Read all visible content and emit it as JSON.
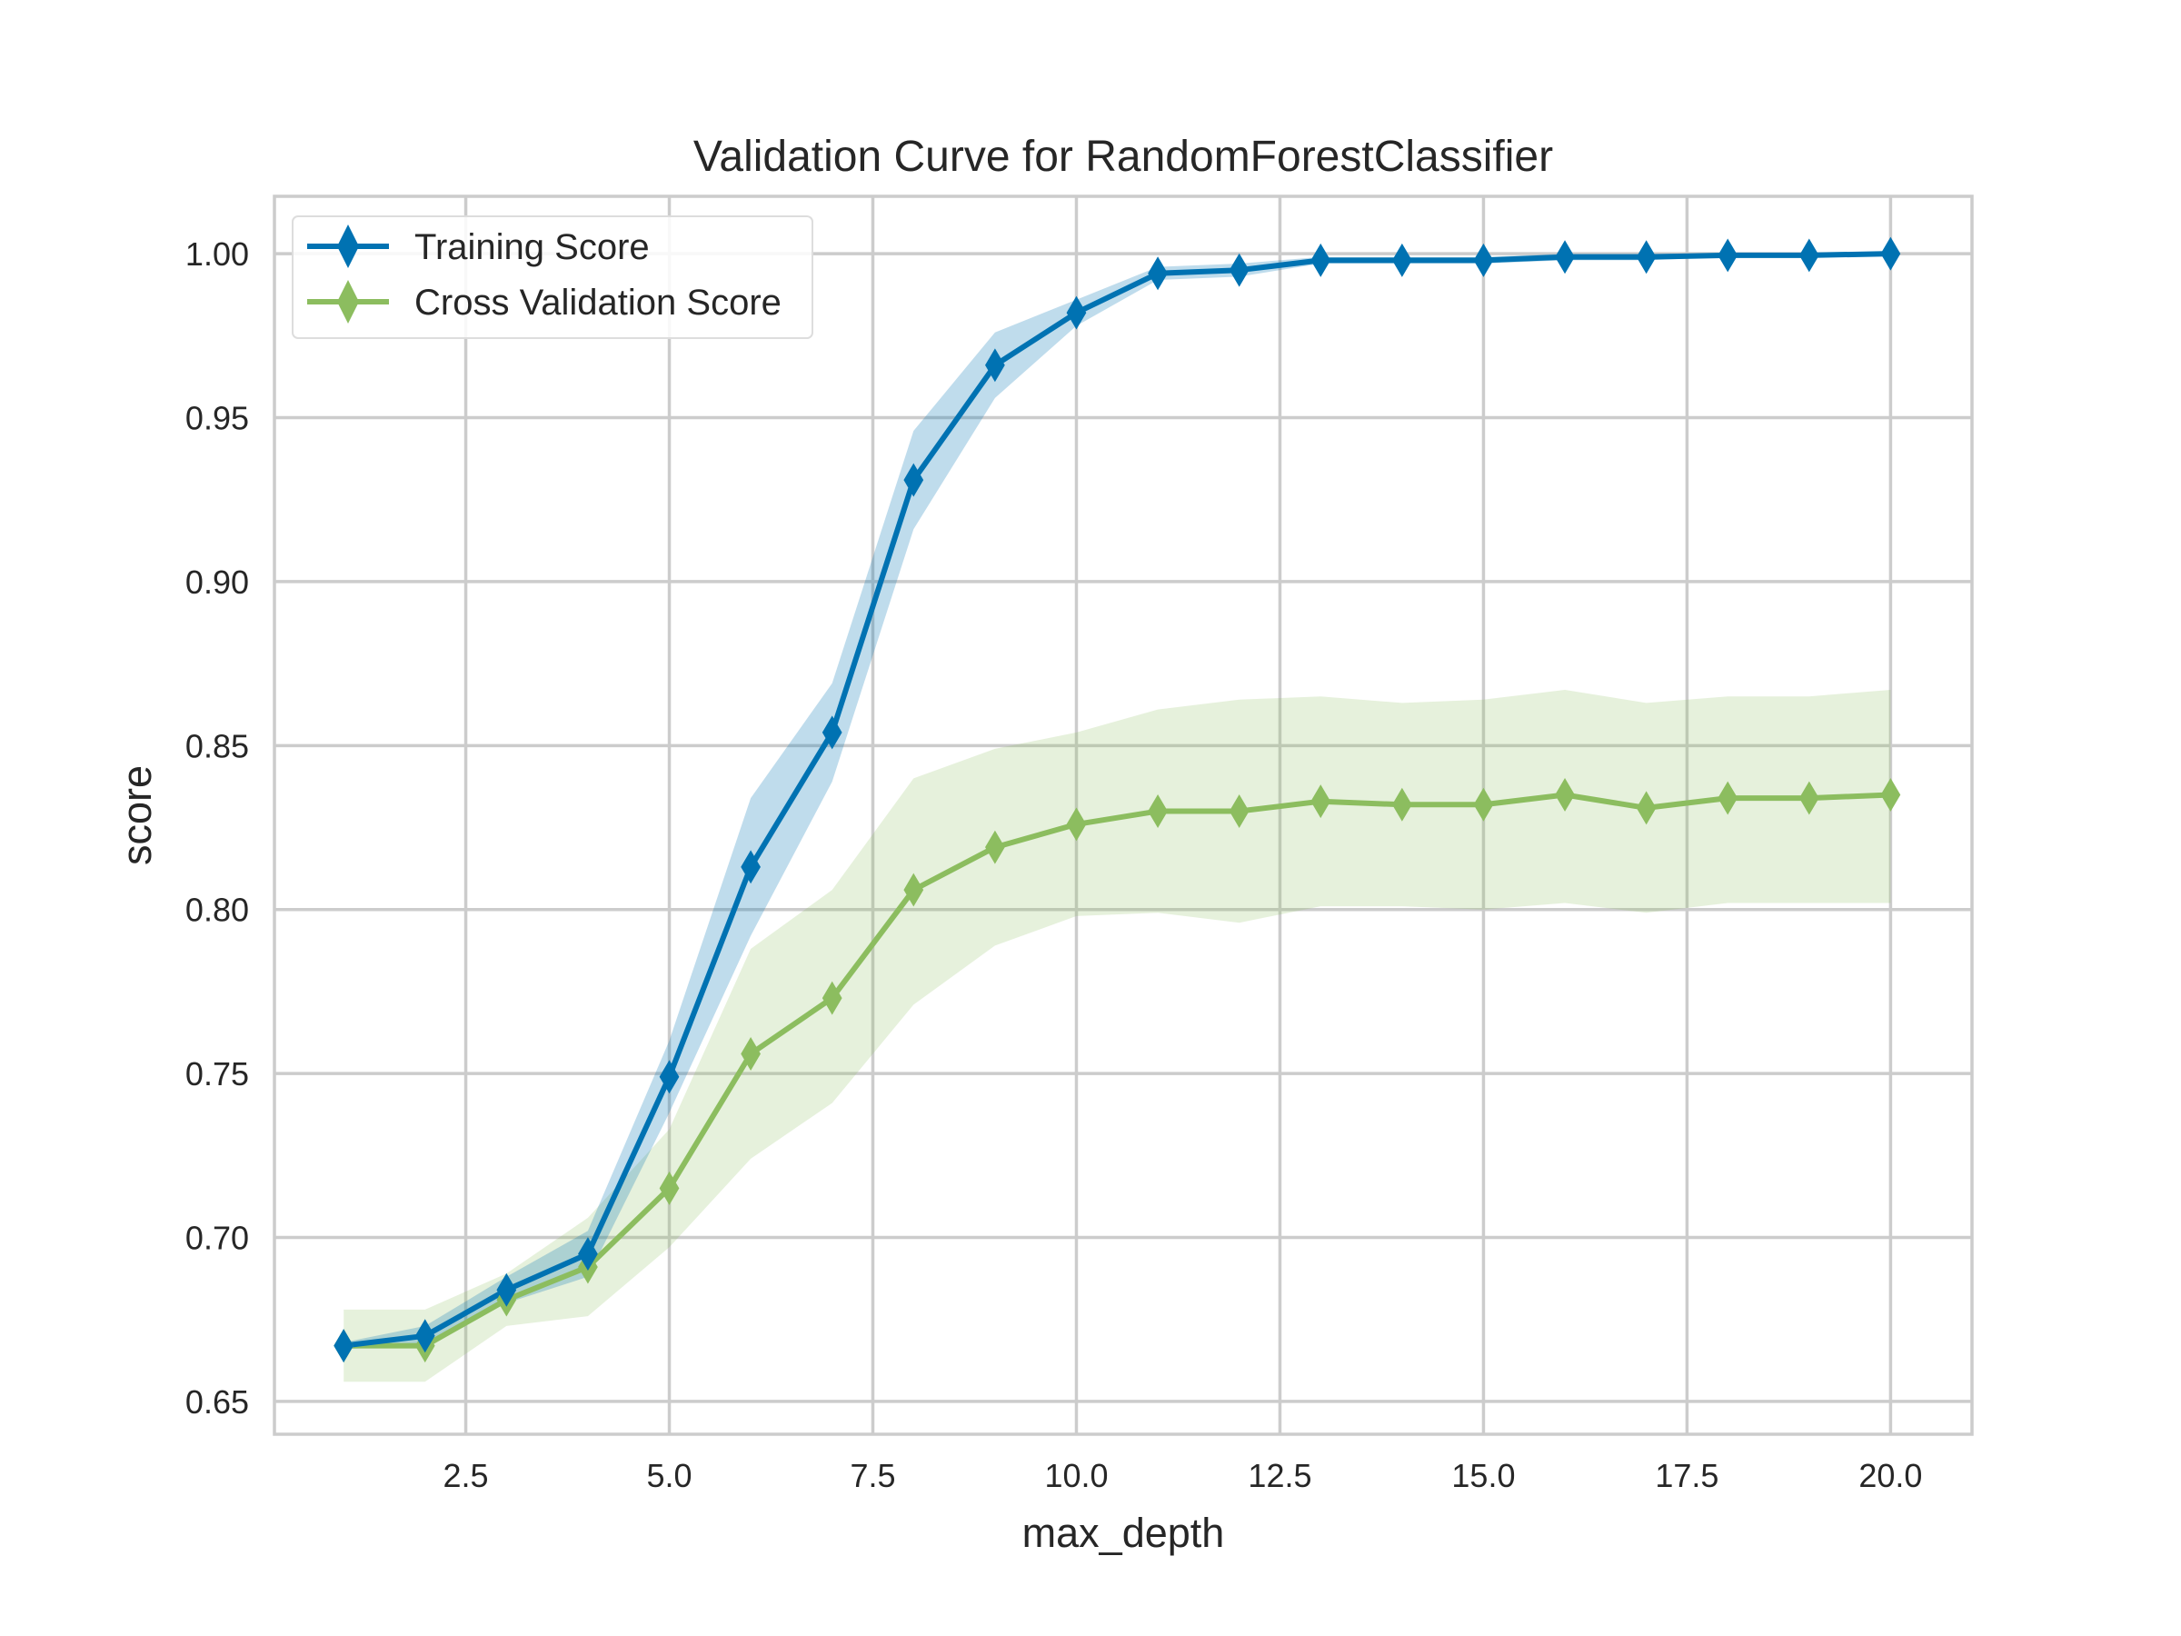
{
  "chart_data": {
    "type": "line",
    "title": "Validation Curve for RandomForestClassifier",
    "xlabel": "max_depth",
    "ylabel": "score",
    "xlim": [
      0.15,
      21.0
    ],
    "ylim": [
      0.64,
      1.0175
    ],
    "xticks": [
      2.5,
      5.0,
      7.5,
      10.0,
      12.5,
      15.0,
      17.5,
      20.0
    ],
    "xtick_labels": [
      "2.5",
      "5.0",
      "7.5",
      "10.0",
      "12.5",
      "15.0",
      "17.5",
      "20.0"
    ],
    "yticks": [
      0.65,
      0.7,
      0.75,
      0.8,
      0.85,
      0.9,
      0.95,
      1.0
    ],
    "ytick_labels": [
      "0.65",
      "0.70",
      "0.75",
      "0.80",
      "0.85",
      "0.90",
      "0.95",
      "1.00"
    ],
    "grid": true,
    "legend_position": "top-left",
    "x": [
      1,
      2,
      3,
      4,
      5,
      6,
      7,
      8,
      9,
      10,
      11,
      12,
      13,
      14,
      15,
      16,
      17,
      18,
      19,
      20
    ],
    "series": [
      {
        "name": "Training Score",
        "color": "#0072b2",
        "marker": "diamond",
        "values": [
          0.667,
          0.67,
          0.684,
          0.695,
          0.749,
          0.813,
          0.854,
          0.931,
          0.966,
          0.982,
          0.994,
          0.995,
          0.998,
          0.998,
          0.998,
          0.999,
          0.999,
          0.9995,
          0.9995,
          1.0
        ],
        "upper": [
          0.668,
          0.673,
          0.688,
          0.702,
          0.76,
          0.834,
          0.869,
          0.946,
          0.976,
          0.986,
          0.996,
          0.997,
          0.999,
          0.999,
          0.999,
          1.0,
          1.0,
          1.0,
          1.0,
          1.0
        ],
        "lower": [
          0.666,
          0.667,
          0.68,
          0.688,
          0.738,
          0.792,
          0.839,
          0.916,
          0.956,
          0.978,
          0.992,
          0.993,
          0.997,
          0.997,
          0.997,
          0.998,
          0.998,
          0.999,
          0.999,
          1.0
        ]
      },
      {
        "name": "Cross Validation Score",
        "color": "#8cbd5f",
        "marker": "diamond",
        "values": [
          0.667,
          0.667,
          0.681,
          0.691,
          0.715,
          0.756,
          0.773,
          0.806,
          0.819,
          0.826,
          0.83,
          0.83,
          0.833,
          0.832,
          0.832,
          0.835,
          0.831,
          0.834,
          0.834,
          0.835
        ],
        "upper": [
          0.678,
          0.678,
          0.689,
          0.706,
          0.733,
          0.788,
          0.806,
          0.84,
          0.849,
          0.854,
          0.861,
          0.864,
          0.865,
          0.863,
          0.864,
          0.867,
          0.863,
          0.865,
          0.865,
          0.867
        ],
        "lower": [
          0.656,
          0.656,
          0.673,
          0.676,
          0.697,
          0.724,
          0.741,
          0.771,
          0.789,
          0.798,
          0.799,
          0.796,
          0.801,
          0.801,
          0.8,
          0.802,
          0.799,
          0.802,
          0.802,
          0.802
        ]
      }
    ]
  }
}
